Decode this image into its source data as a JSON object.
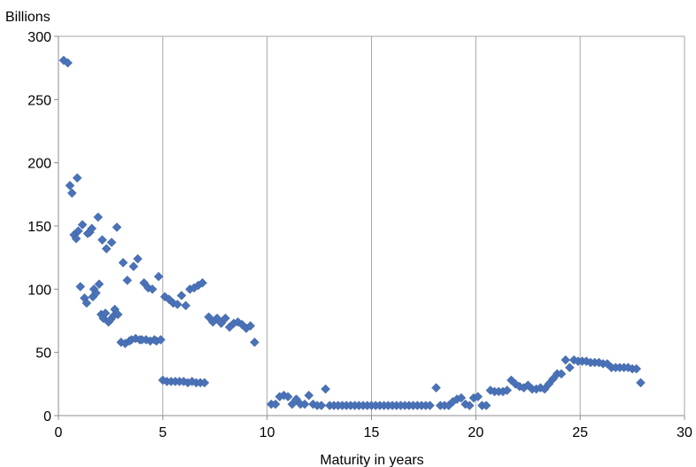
{
  "chart_data": {
    "type": "scatter",
    "title": "",
    "ylabel": "Billions",
    "xlabel": "Maturity in years",
    "xlim": [
      0,
      30
    ],
    "ylim": [
      0,
      300
    ],
    "xticks": [
      0,
      5,
      10,
      15,
      20,
      25,
      30
    ],
    "yticks": [
      0,
      50,
      100,
      150,
      200,
      250,
      300
    ],
    "grid": "vertical gridlines at x ticks",
    "marker": "diamond",
    "marker_color": "#4A72B8",
    "gridline_color": "#A6A6A6",
    "points": [
      [
        0.25,
        281
      ],
      [
        0.45,
        279
      ],
      [
        0.55,
        182
      ],
      [
        0.65,
        176
      ],
      [
        0.75,
        143
      ],
      [
        0.85,
        140
      ],
      [
        0.9,
        188
      ],
      [
        0.95,
        146
      ],
      [
        1.05,
        102
      ],
      [
        1.15,
        151
      ],
      [
        1.25,
        93
      ],
      [
        1.35,
        89
      ],
      [
        1.4,
        144
      ],
      [
        1.5,
        145
      ],
      [
        1.6,
        148
      ],
      [
        1.65,
        94
      ],
      [
        1.7,
        100
      ],
      [
        1.8,
        97
      ],
      [
        1.9,
        157
      ],
      [
        1.95,
        104
      ],
      [
        2.05,
        80
      ],
      [
        2.1,
        139
      ],
      [
        2.15,
        77
      ],
      [
        2.25,
        81
      ],
      [
        2.3,
        132
      ],
      [
        2.4,
        74
      ],
      [
        2.5,
        76
      ],
      [
        2.55,
        137
      ],
      [
        2.65,
        79
      ],
      [
        2.7,
        84
      ],
      [
        2.8,
        149
      ],
      [
        2.85,
        80
      ],
      [
        3.0,
        58
      ],
      [
        3.1,
        121
      ],
      [
        3.2,
        57
      ],
      [
        3.3,
        107
      ],
      [
        3.4,
        59
      ],
      [
        3.5,
        60
      ],
      [
        3.6,
        118
      ],
      [
        3.7,
        61
      ],
      [
        3.8,
        124
      ],
      [
        3.9,
        60
      ],
      [
        4.0,
        60
      ],
      [
        4.1,
        105
      ],
      [
        4.2,
        60
      ],
      [
        4.3,
        101
      ],
      [
        4.4,
        59
      ],
      [
        4.5,
        100
      ],
      [
        4.6,
        60
      ],
      [
        4.7,
        59
      ],
      [
        4.8,
        110
      ],
      [
        4.9,
        60
      ],
      [
        5.0,
        28
      ],
      [
        5.1,
        94
      ],
      [
        5.2,
        27
      ],
      [
        5.3,
        92
      ],
      [
        5.4,
        27
      ],
      [
        5.5,
        89
      ],
      [
        5.6,
        27
      ],
      [
        5.7,
        88
      ],
      [
        5.8,
        27
      ],
      [
        5.9,
        95
      ],
      [
        6.0,
        27
      ],
      [
        6.1,
        87
      ],
      [
        6.2,
        26
      ],
      [
        6.3,
        100
      ],
      [
        6.4,
        27
      ],
      [
        6.5,
        101
      ],
      [
        6.6,
        26
      ],
      [
        6.7,
        103
      ],
      [
        6.8,
        26
      ],
      [
        6.9,
        105
      ],
      [
        7.0,
        26
      ],
      [
        7.2,
        78
      ],
      [
        7.4,
        74
      ],
      [
        7.6,
        77
      ],
      [
        7.8,
        73
      ],
      [
        8.0,
        77
      ],
      [
        8.2,
        70
      ],
      [
        8.4,
        73
      ],
      [
        8.6,
        74
      ],
      [
        8.8,
        72
      ],
      [
        9.0,
        69
      ],
      [
        9.2,
        71
      ],
      [
        9.4,
        58
      ],
      [
        10.2,
        9
      ],
      [
        10.4,
        9
      ],
      [
        10.6,
        15
      ],
      [
        10.8,
        16
      ],
      [
        11.0,
        15
      ],
      [
        11.2,
        9
      ],
      [
        11.4,
        13
      ],
      [
        11.6,
        9
      ],
      [
        11.8,
        9
      ],
      [
        12.0,
        16
      ],
      [
        12.2,
        9
      ],
      [
        12.4,
        8
      ],
      [
        12.6,
        8
      ],
      [
        12.8,
        21
      ],
      [
        13.0,
        8
      ],
      [
        13.2,
        8
      ],
      [
        13.4,
        8
      ],
      [
        13.6,
        8
      ],
      [
        13.8,
        8
      ],
      [
        14.0,
        8
      ],
      [
        14.2,
        8
      ],
      [
        14.4,
        8
      ],
      [
        14.6,
        8
      ],
      [
        14.8,
        8
      ],
      [
        15.0,
        8
      ],
      [
        15.2,
        8
      ],
      [
        15.4,
        8
      ],
      [
        15.6,
        8
      ],
      [
        15.8,
        8
      ],
      [
        16.0,
        8
      ],
      [
        16.2,
        8
      ],
      [
        16.4,
        8
      ],
      [
        16.6,
        8
      ],
      [
        16.8,
        8
      ],
      [
        17.0,
        8
      ],
      [
        17.2,
        8
      ],
      [
        17.4,
        8
      ],
      [
        17.6,
        8
      ],
      [
        17.8,
        8
      ],
      [
        18.1,
        22
      ],
      [
        18.3,
        8
      ],
      [
        18.5,
        8
      ],
      [
        18.7,
        8
      ],
      [
        18.9,
        11
      ],
      [
        19.1,
        13
      ],
      [
        19.3,
        14
      ],
      [
        19.5,
        9
      ],
      [
        19.7,
        8
      ],
      [
        19.9,
        14
      ],
      [
        20.1,
        15
      ],
      [
        20.3,
        8
      ],
      [
        20.5,
        8
      ],
      [
        20.7,
        20
      ],
      [
        20.9,
        19
      ],
      [
        21.1,
        19
      ],
      [
        21.3,
        19
      ],
      [
        21.5,
        20
      ],
      [
        21.7,
        28
      ],
      [
        21.9,
        25
      ],
      [
        22.1,
        23
      ],
      [
        22.3,
        22
      ],
      [
        22.5,
        24
      ],
      [
        22.7,
        21
      ],
      [
        22.9,
        21
      ],
      [
        23.1,
        22
      ],
      [
        23.3,
        21
      ],
      [
        23.5,
        25
      ],
      [
        23.7,
        29
      ],
      [
        23.9,
        33
      ],
      [
        24.1,
        33
      ],
      [
        24.3,
        44
      ],
      [
        24.5,
        38
      ],
      [
        24.7,
        44
      ],
      [
        24.9,
        43
      ],
      [
        25.1,
        43
      ],
      [
        25.3,
        43
      ],
      [
        25.5,
        42
      ],
      [
        25.7,
        42
      ],
      [
        25.9,
        42
      ],
      [
        26.1,
        41
      ],
      [
        26.3,
        41
      ],
      [
        26.5,
        38
      ],
      [
        26.7,
        38
      ],
      [
        26.9,
        38
      ],
      [
        27.1,
        38
      ],
      [
        27.3,
        38
      ],
      [
        27.5,
        37
      ],
      [
        27.7,
        37
      ],
      [
        27.9,
        26
      ]
    ]
  }
}
